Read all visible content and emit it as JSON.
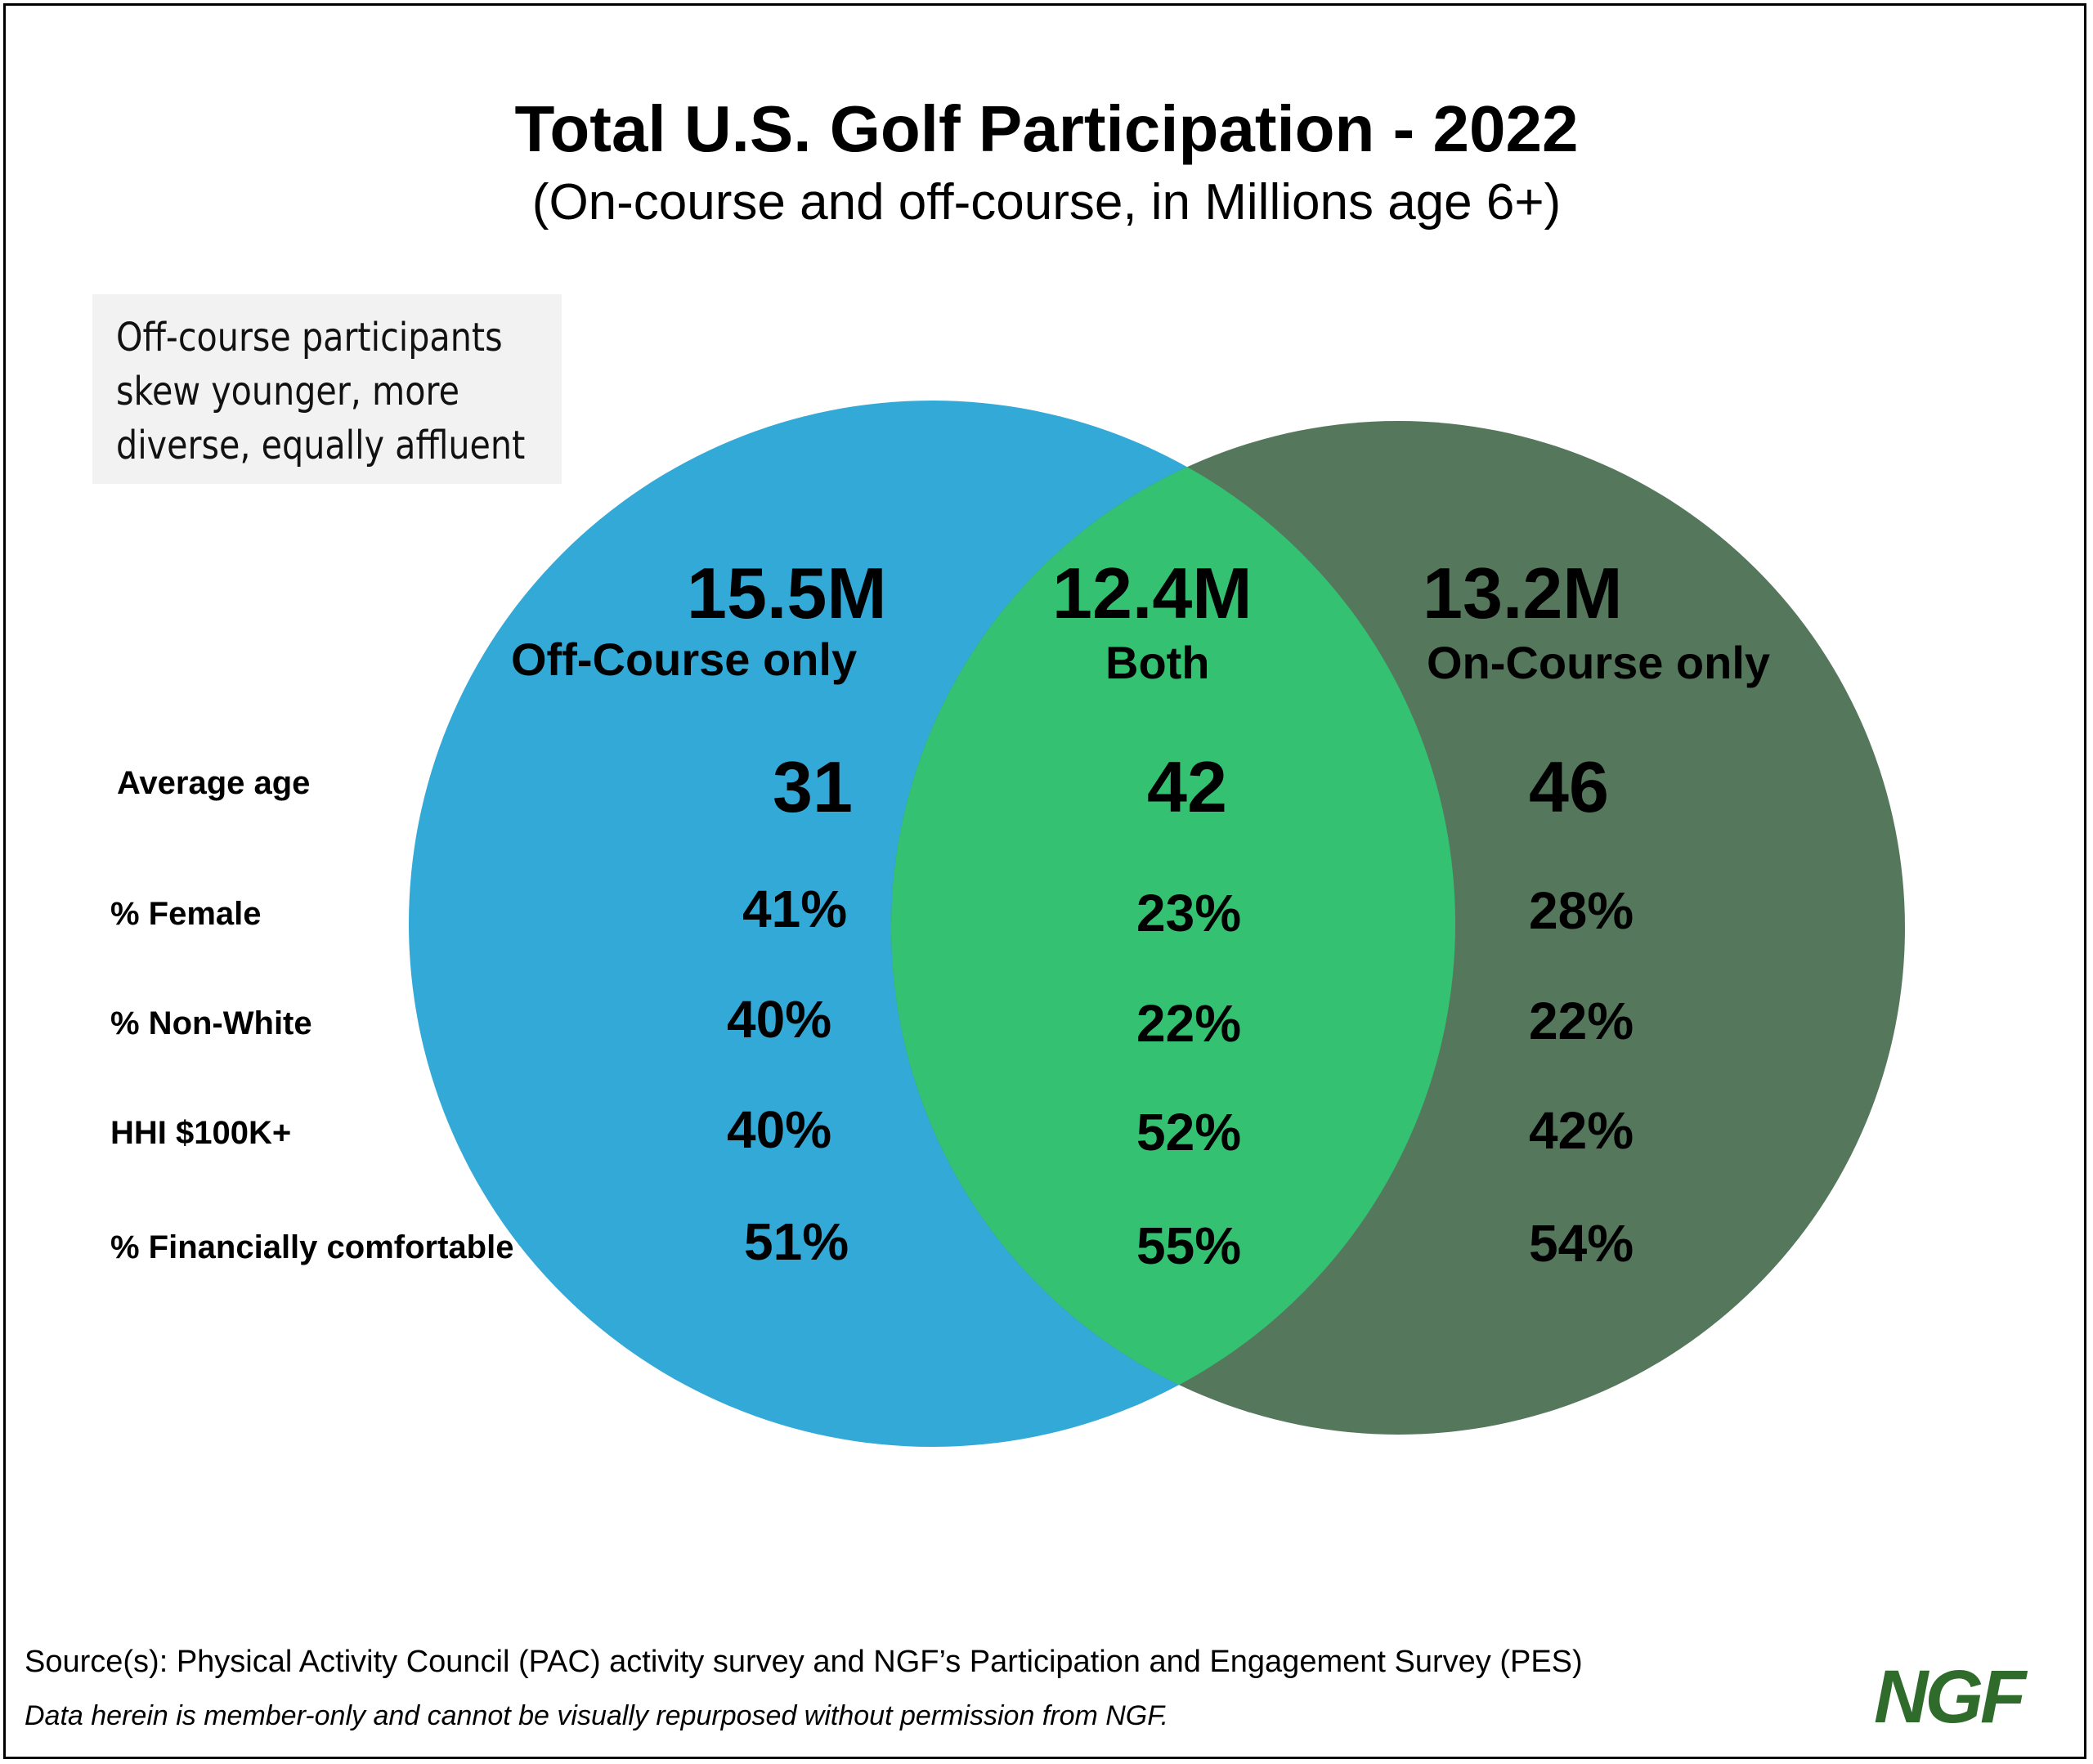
{
  "title": "Total U.S. Golf Participation - 2022",
  "subtitle": "(On-course and off-course, in Millions age 6+)",
  "note": [
    "Off-course participants",
    "skew younger, more",
    "diverse, equally affluent"
  ],
  "colors": {
    "off_course": "#33a9d8",
    "both": "#34c172",
    "on_course": "#55775c"
  },
  "segments": [
    {
      "total": "15.5M",
      "label": "Off-Course only",
      "values": [
        "31",
        "41%",
        "40%",
        "40%",
        "51%"
      ]
    },
    {
      "total": "12.4M",
      "label": "Both",
      "values": [
        "42",
        "23%",
        "22%",
        "52%",
        "55%"
      ]
    },
    {
      "total": "13.2M",
      "label": "On-Course only",
      "values": [
        "46",
        "28%",
        "22%",
        "42%",
        "54%"
      ]
    }
  ],
  "rows": [
    "Average age",
    "% Female",
    "% Non-White",
    "HHI $100K+",
    "% Financially comfortable"
  ],
  "footer": {
    "source": "Source(s): Physical Activity Council (PAC) activity survey and NGF’s Participation and Engagement Survey (PES)",
    "disclaimer": "Data herein is member-only and cannot be visually repurposed without permission from NGF.",
    "logo": "NGF"
  }
}
